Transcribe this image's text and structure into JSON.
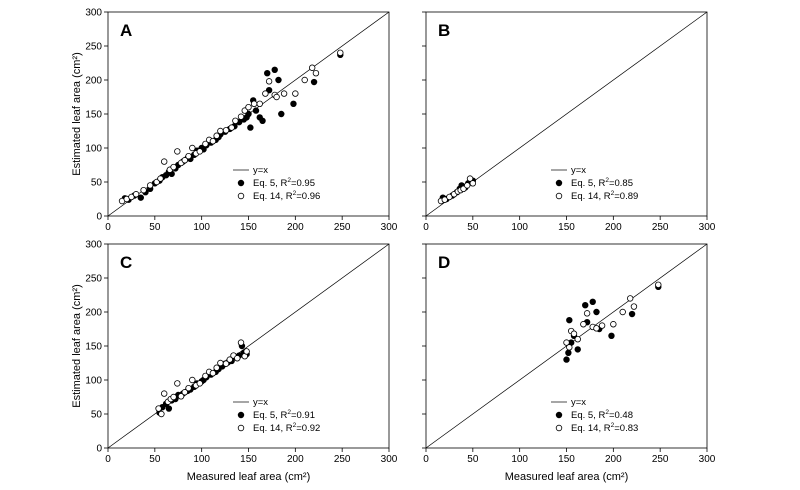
{
  "chart_data": [
    {
      "type": "scatter",
      "panel_label": "A",
      "xlim": [
        0,
        300
      ],
      "ylim": [
        0,
        300
      ],
      "x_ticks": [
        "0",
        "50",
        "100",
        "150",
        "200",
        "250",
        "300"
      ],
      "y_ticks": [
        "0",
        "50",
        "100",
        "150",
        "200",
        "250",
        "300"
      ],
      "ylabel": "Estimated leaf area (cm²)",
      "xlabel": "",
      "legend": {
        "line": "y=x",
        "filled": [
          "Eq. 5, R",
          "2",
          "=0.95"
        ],
        "open": [
          "Eq. 14, R",
          "2",
          "=0.96"
        ]
      },
      "series": [
        {
          "name": "Eq. 5, R²=0.95",
          "marker": "filled",
          "points": [
            [
              18,
              26
            ],
            [
              22,
              24
            ],
            [
              28,
              30
            ],
            [
              35,
              27
            ],
            [
              40,
              35
            ],
            [
              45,
              40
            ],
            [
              50,
              48
            ],
            [
              55,
              52
            ],
            [
              58,
              57
            ],
            [
              62,
              60
            ],
            [
              65,
              65
            ],
            [
              68,
              62
            ],
            [
              72,
              70
            ],
            [
              75,
              75
            ],
            [
              80,
              80
            ],
            [
              85,
              85
            ],
            [
              88,
              84
            ],
            [
              92,
              90
            ],
            [
              95,
              96
            ],
            [
              100,
              100
            ],
            [
              102,
              98
            ],
            [
              105,
              104
            ],
            [
              110,
              108
            ],
            [
              115,
              112
            ],
            [
              118,
              116
            ],
            [
              120,
              120
            ],
            [
              125,
              124
            ],
            [
              130,
              128
            ],
            [
              135,
              132
            ],
            [
              140,
              138
            ],
            [
              145,
              142
            ],
            [
              148,
              145
            ],
            [
              150,
              150
            ],
            [
              152,
              130
            ],
            [
              155,
              170
            ],
            [
              158,
              155
            ],
            [
              162,
              145
            ],
            [
              165,
              140
            ],
            [
              170,
              210
            ],
            [
              172,
              185
            ],
            [
              178,
              215
            ],
            [
              182,
              200
            ],
            [
              185,
              150
            ],
            [
              198,
              165
            ],
            [
              220,
              197
            ],
            [
              248,
              237
            ]
          ]
        },
        {
          "name": "Eq. 14, R²=0.96",
          "marker": "open",
          "points": [
            [
              15,
              22
            ],
            [
              20,
              25
            ],
            [
              25,
              28
            ],
            [
              30,
              32
            ],
            [
              38,
              38
            ],
            [
              45,
              45
            ],
            [
              52,
              50
            ],
            [
              56,
              55
            ],
            [
              60,
              80
            ],
            [
              66,
              68
            ],
            [
              70,
              72
            ],
            [
              74,
              95
            ],
            [
              78,
              78
            ],
            [
              82,
              82
            ],
            [
              86,
              88
            ],
            [
              90,
              100
            ],
            [
              94,
              92
            ],
            [
              98,
              95
            ],
            [
              104,
              106
            ],
            [
              108,
              112
            ],
            [
              112,
              110
            ],
            [
              116,
              118
            ],
            [
              120,
              125
            ],
            [
              126,
              126
            ],
            [
              132,
              130
            ],
            [
              136,
              140
            ],
            [
              142,
              146
            ],
            [
              146,
              155
            ],
            [
              150,
              160
            ],
            [
              156,
              165
            ],
            [
              162,
              165
            ],
            [
              168,
              180
            ],
            [
              172,
              198
            ],
            [
              178,
              178
            ],
            [
              180,
              175
            ],
            [
              188,
              180
            ],
            [
              200,
              180
            ],
            [
              210,
              200
            ],
            [
              218,
              218
            ],
            [
              222,
              210
            ],
            [
              248,
              240
            ]
          ]
        }
      ]
    },
    {
      "type": "scatter",
      "panel_label": "B",
      "xlim": [
        0,
        300
      ],
      "ylim": [
        0,
        300
      ],
      "x_ticks": [
        "0",
        "50",
        "100",
        "150",
        "200",
        "250",
        "300"
      ],
      "y_ticks": [],
      "legend": {
        "line": "y=x",
        "filled": [
          "Eq. 5, R",
          "2",
          "=0.85"
        ],
        "open": [
          "Eq. 14, R",
          "2",
          "=0.89"
        ]
      },
      "series": [
        {
          "name": "Eq. 5, R²=0.85",
          "marker": "filled",
          "points": [
            [
              18,
              27
            ],
            [
              22,
              25
            ],
            [
              28,
              30
            ],
            [
              33,
              35
            ],
            [
              36,
              40
            ],
            [
              38,
              45
            ],
            [
              42,
              42
            ],
            [
              45,
              48
            ],
            [
              48,
              50
            ],
            [
              50,
              52
            ]
          ]
        },
        {
          "name": "Eq. 14, R²=0.89",
          "marker": "open",
          "points": [
            [
              16,
              22
            ],
            [
              20,
              24
            ],
            [
              25,
              28
            ],
            [
              30,
              32
            ],
            [
              34,
              36
            ],
            [
              37,
              38
            ],
            [
              40,
              40
            ],
            [
              44,
              45
            ],
            [
              47,
              55
            ],
            [
              50,
              48
            ]
          ]
        }
      ]
    },
    {
      "type": "scatter",
      "panel_label": "C",
      "xlim": [
        0,
        300
      ],
      "ylim": [
        0,
        300
      ],
      "x_ticks": [
        "0",
        "50",
        "100",
        "150",
        "200",
        "250",
        "300"
      ],
      "y_ticks": [
        "0",
        "50",
        "100",
        "150",
        "200",
        "250",
        "300"
      ],
      "ylabel": "Estimated leaf area (cm²)",
      "xlabel": "Measured leaf area (cm²)",
      "legend": {
        "line": "y=x",
        "filled": [
          "Eq. 5, R",
          "2",
          "=0.91"
        ],
        "open": [
          "Eq. 14, R",
          "2",
          "=0.92"
        ]
      },
      "series": [
        {
          "name": "Eq. 5, R²=0.91",
          "marker": "filled",
          "points": [
            [
              55,
              52
            ],
            [
              58,
              60
            ],
            [
              62,
              65
            ],
            [
              65,
              58
            ],
            [
              68,
              70
            ],
            [
              72,
              72
            ],
            [
              75,
              78
            ],
            [
              80,
              80
            ],
            [
              85,
              84
            ],
            [
              88,
              86
            ],
            [
              92,
              90
            ],
            [
              95,
              95
            ],
            [
              100,
              98
            ],
            [
              102,
              100
            ],
            [
              105,
              104
            ],
            [
              110,
              108
            ],
            [
              115,
              112
            ],
            [
              118,
              116
            ],
            [
              122,
              120
            ],
            [
              125,
              124
            ],
            [
              128,
              126
            ],
            [
              132,
              128
            ],
            [
              135,
              134
            ],
            [
              140,
              136
            ],
            [
              143,
              150
            ],
            [
              145,
              140
            ],
            [
              148,
              138
            ]
          ]
        },
        {
          "name": "Eq. 14, R²=0.92",
          "marker": "open",
          "points": [
            [
              54,
              58
            ],
            [
              57,
              50
            ],
            [
              60,
              80
            ],
            [
              64,
              68
            ],
            [
              67,
              72
            ],
            [
              70,
              75
            ],
            [
              74,
              95
            ],
            [
              78,
              76
            ],
            [
              82,
              82
            ],
            [
              86,
              88
            ],
            [
              90,
              100
            ],
            [
              94,
              92
            ],
            [
              98,
              95
            ],
            [
              104,
              106
            ],
            [
              108,
              112
            ],
            [
              112,
              110
            ],
            [
              116,
              118
            ],
            [
              120,
              125
            ],
            [
              126,
              124
            ],
            [
              130,
              130
            ],
            [
              134,
              136
            ],
            [
              138,
              132
            ],
            [
              142,
              155
            ],
            [
              146,
              135
            ],
            [
              148,
              142
            ]
          ]
        }
      ]
    },
    {
      "type": "scatter",
      "panel_label": "D",
      "xlim": [
        0,
        300
      ],
      "ylim": [
        0,
        300
      ],
      "x_ticks": [
        "0",
        "50",
        "100",
        "150",
        "200",
        "250",
        "300"
      ],
      "y_ticks": [],
      "xlabel": "Measured leaf area (cm²)",
      "legend": {
        "line": "y=x",
        "filled": [
          "Eq. 5, R",
          "2",
          "=0.48"
        ],
        "open": [
          "Eq. 14, R",
          "2",
          "=0.83"
        ]
      },
      "series": [
        {
          "name": "Eq. 5, R²=0.48",
          "marker": "filled",
          "points": [
            [
              150,
              130
            ],
            [
              152,
              140
            ],
            [
              153,
              188
            ],
            [
              155,
              155
            ],
            [
              158,
              165
            ],
            [
              162,
              145
            ],
            [
              170,
              210
            ],
            [
              172,
              185
            ],
            [
              178,
              215
            ],
            [
              182,
              200
            ],
            [
              185,
              175
            ],
            [
              198,
              165
            ],
            [
              220,
              197
            ],
            [
              248,
              237
            ]
          ]
        },
        {
          "name": "Eq. 14, R²=0.83",
          "marker": "open",
          "points": [
            [
              150,
              155
            ],
            [
              153,
              148
            ],
            [
              155,
              172
            ],
            [
              158,
              168
            ],
            [
              162,
              160
            ],
            [
              168,
              182
            ],
            [
              172,
              198
            ],
            [
              178,
              178
            ],
            [
              182,
              176
            ],
            [
              188,
              180
            ],
            [
              200,
              182
            ],
            [
              210,
              200
            ],
            [
              218,
              220
            ],
            [
              222,
              208
            ],
            [
              248,
              240
            ]
          ]
        }
      ]
    }
  ]
}
